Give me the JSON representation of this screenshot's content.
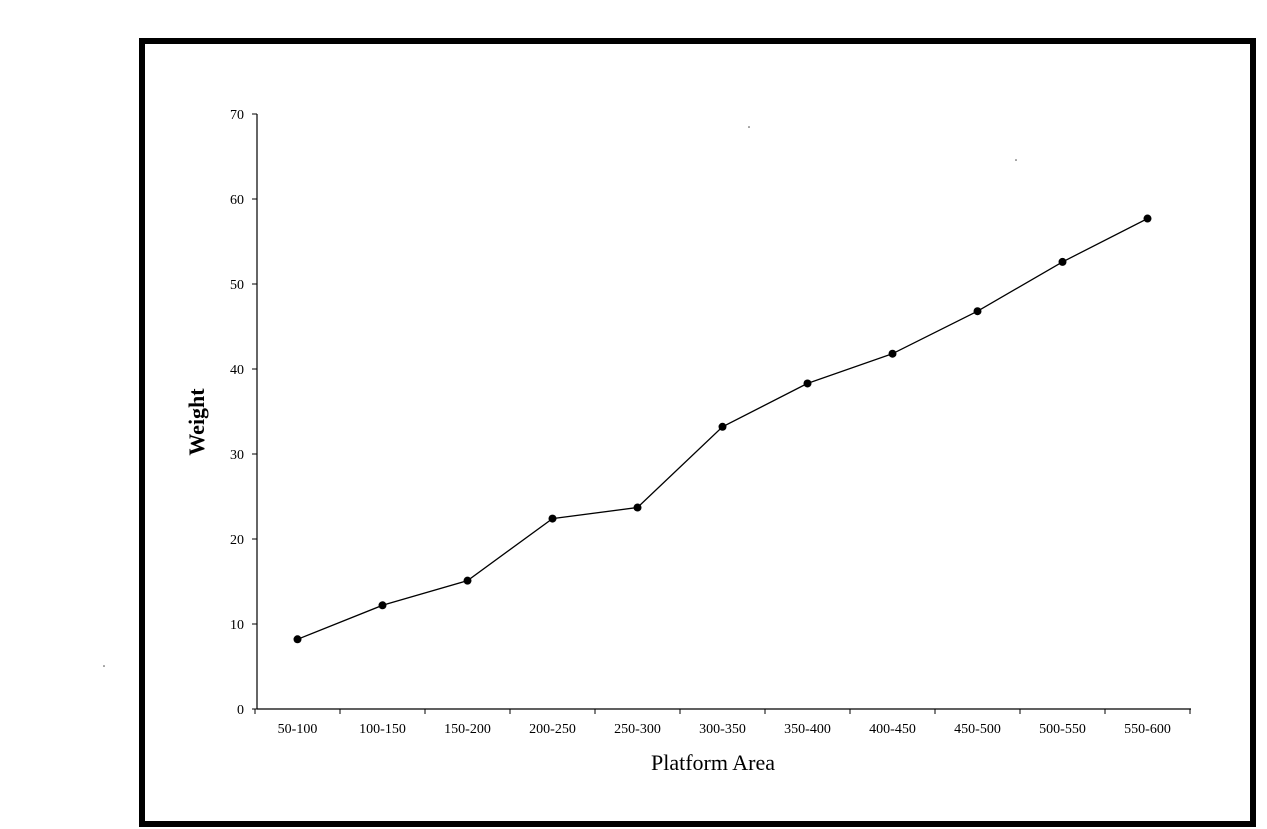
{
  "chart_data": {
    "type": "line",
    "xlabel": "Platform Area",
    "ylabel": "Weight",
    "categories": [
      "50-100",
      "100-150",
      "150-200",
      "200-250",
      "250-300",
      "300-350",
      "350-400",
      "400-450",
      "450-500",
      "500-550",
      "550-600"
    ],
    "series": [
      {
        "values": [
          8.2,
          12.2,
          15.1,
          22.4,
          23.7,
          33.2,
          38.3,
          41.8,
          46.8,
          52.6,
          57.7
        ]
      }
    ],
    "ylim": [
      0,
      70
    ],
    "yticks": [
      0,
      10,
      20,
      30,
      40,
      50,
      60,
      70
    ],
    "grid": false,
    "legend": "none",
    "colors": {
      "line": "#000000",
      "marker": "#000000",
      "frame": "#000000"
    }
  }
}
